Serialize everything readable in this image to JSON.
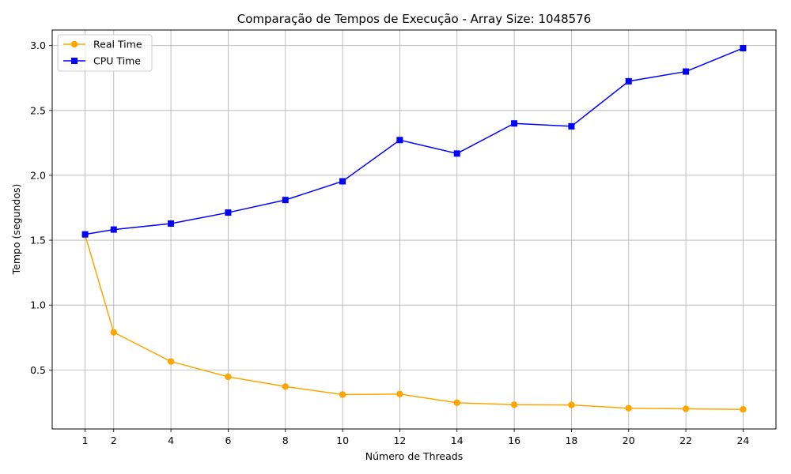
{
  "chart_data": {
    "type": "line",
    "title": "Comparação de Tempos de Execução - Array Size: 1048576",
    "xlabel": "Número de Threads",
    "ylabel": "Tempo (segundos)",
    "x": [
      1,
      2,
      4,
      6,
      8,
      10,
      12,
      14,
      16,
      18,
      20,
      22,
      24
    ],
    "x_ticks": [
      "1",
      "2",
      "4",
      "6",
      "8",
      "10",
      "12",
      "14",
      "16",
      "18",
      "20",
      "22",
      "24"
    ],
    "xlim": [
      -0.15,
      25.15
    ],
    "y_ticks": [
      "0.5",
      "1.0",
      "1.5",
      "2.0",
      "2.5",
      "3.0"
    ],
    "ylim": [
      0.045,
      3.12
    ],
    "grid": true,
    "legend_position": "top-left",
    "series": [
      {
        "name": "Real Time",
        "color": "#ffa500",
        "marker": "circle",
        "values": [
          1.54,
          0.79,
          0.565,
          0.447,
          0.372,
          0.31,
          0.314,
          0.247,
          0.232,
          0.23,
          0.205,
          0.2,
          0.196
        ]
      },
      {
        "name": "CPU Time",
        "color": "#0000ff",
        "marker": "square",
        "values": [
          1.545,
          1.582,
          1.628,
          1.713,
          1.81,
          1.954,
          2.272,
          2.168,
          2.4,
          2.378,
          2.725,
          2.8,
          2.98
        ]
      }
    ]
  }
}
